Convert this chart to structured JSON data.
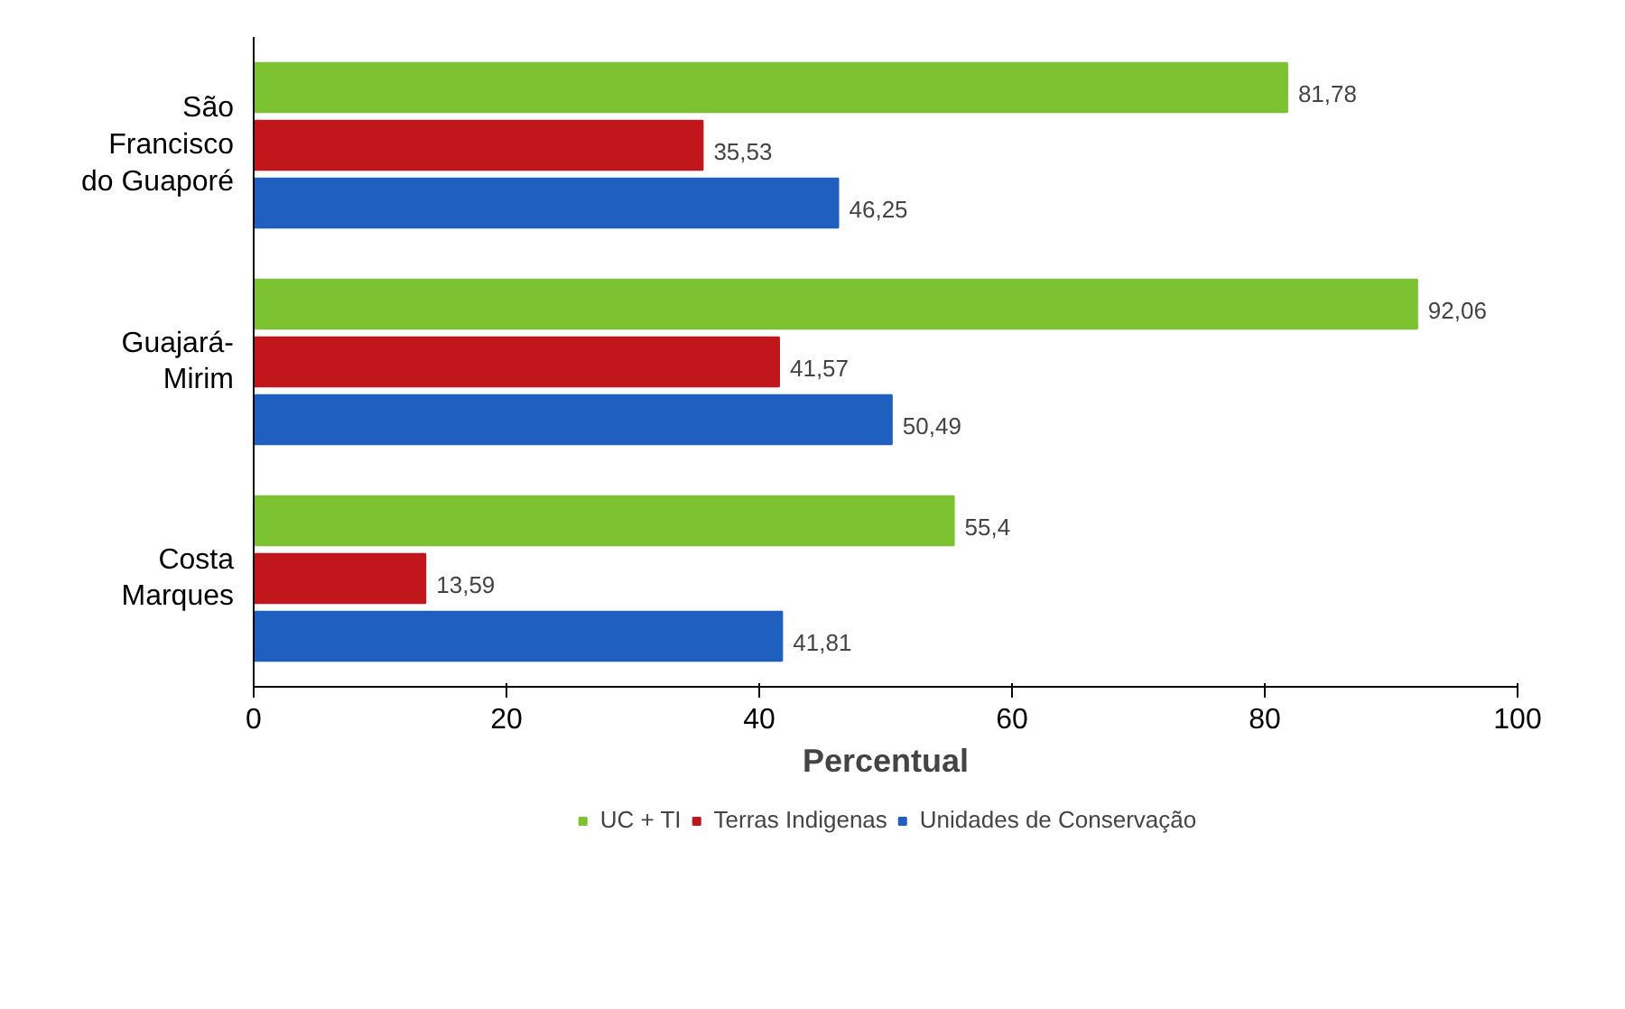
{
  "chart_data": {
    "type": "bar",
    "orientation": "horizontal",
    "xlabel": "Percentual",
    "categories": [
      "São\nFrancisco\ndo Guaporé",
      "Guajará-\nMirim",
      "Costa\nMarques"
    ],
    "series": [
      {
        "name": "UC + TI",
        "color": "#7dc231",
        "values": [
          81.78,
          92.06,
          55.4
        ],
        "value_labels": [
          "81,78",
          "92,06",
          "55,4"
        ]
      },
      {
        "name": "Terras Indigenas",
        "color": "#c0161c",
        "values": [
          35.53,
          41.57,
          13.59
        ],
        "value_labels": [
          "35,53",
          "41,57",
          "13,59"
        ]
      },
      {
        "name": "Unidades de Conservação",
        "color": "#1f5fbf",
        "values": [
          46.25,
          50.49,
          41.81
        ],
        "value_labels": [
          "46,25",
          "50,49",
          "41,81"
        ]
      }
    ],
    "xlim": [
      0,
      100
    ],
    "xticks": [
      0,
      20,
      40,
      60,
      80,
      100
    ],
    "grid": false,
    "legend": "bottom"
  }
}
